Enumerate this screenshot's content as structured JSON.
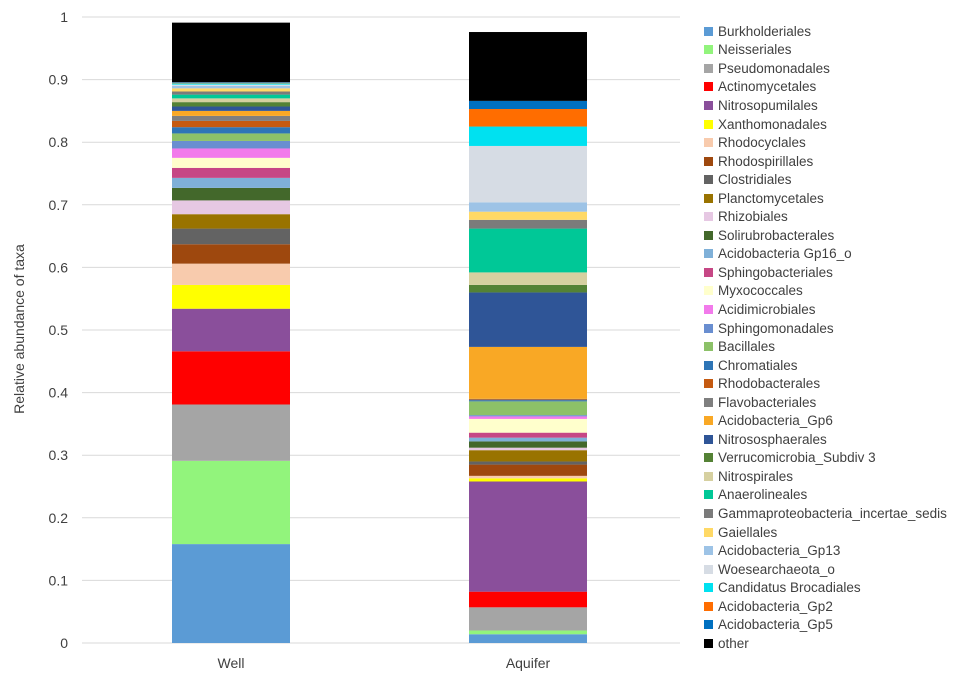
{
  "chart_data": {
    "type": "bar",
    "stacked": true,
    "ylabel": "Relative abundance of taxa",
    "xlabel": "",
    "ylim": [
      0,
      1
    ],
    "yticks": [
      0,
      0.1,
      0.2,
      0.3,
      0.4,
      0.5,
      0.6,
      0.7,
      0.8,
      0.9,
      1
    ],
    "ytick_labels": [
      "0",
      "0.1",
      "0.2",
      "0.3",
      "0.4",
      "0.5",
      "0.6",
      "0.7",
      "0.8",
      "0.9",
      "1"
    ],
    "grid": true,
    "legend_position": "right",
    "categories": [
      "Well",
      "Aquifer"
    ],
    "series": [
      {
        "name": "Burkholderiales",
        "color": "#5B9BD5",
        "values": [
          0.158,
          0.014
        ]
      },
      {
        "name": "Neisseriales",
        "color": "#92F47C",
        "values": [
          0.133,
          0.006
        ]
      },
      {
        "name": "Pseudomonadales",
        "color": "#A5A5A5",
        "values": [
          0.09,
          0.037
        ]
      },
      {
        "name": "Actinomycetales",
        "color": "#FF0000",
        "values": [
          0.085,
          0.025
        ]
      },
      {
        "name": "Nitrosopumilales",
        "color": "#8A4F9B",
        "values": [
          0.068,
          0.176
        ]
      },
      {
        "name": "Xanthomonadales",
        "color": "#FFFF00",
        "values": [
          0.038,
          0.005
        ]
      },
      {
        "name": "Rhodocyclales",
        "color": "#F8CBAD",
        "values": [
          0.034,
          0.004
        ]
      },
      {
        "name": "Rhodospirillales",
        "color": "#9E480E",
        "values": [
          0.031,
          0.018
        ]
      },
      {
        "name": "Clostridiales",
        "color": "#636363",
        "values": [
          0.025,
          0.005
        ]
      },
      {
        "name": "Planctomycetales",
        "color": "#997300",
        "values": [
          0.023,
          0.018
        ]
      },
      {
        "name": "Rhizobiales",
        "color": "#E6C8E3",
        "values": [
          0.022,
          0.004
        ]
      },
      {
        "name": "Solirubrobacterales",
        "color": "#43682B",
        "values": [
          0.02,
          0.01
        ]
      },
      {
        "name": "Acidobacteria Gp16_o",
        "color": "#7FB0D8",
        "values": [
          0.016,
          0.006
        ]
      },
      {
        "name": "Sphingobacteriales",
        "color": "#C64785",
        "values": [
          0.016,
          0.008
        ]
      },
      {
        "name": "Myxococcales",
        "color": "#FFFFCC",
        "values": [
          0.016,
          0.022
        ]
      },
      {
        "name": "Acidimicrobiales",
        "color": "#F27AEB",
        "values": [
          0.015,
          0.004
        ]
      },
      {
        "name": "Sphingomonadales",
        "color": "#698ED0",
        "values": [
          0.012,
          0.002
        ]
      },
      {
        "name": "Bacillales",
        "color": "#8CC168",
        "values": [
          0.012,
          0.022
        ]
      },
      {
        "name": "Chromatiales",
        "color": "#2E75B6",
        "values": [
          0.01,
          0.002
        ]
      },
      {
        "name": "Rhodobacterales",
        "color": "#C55A11",
        "values": [
          0.01,
          0.001
        ]
      },
      {
        "name": "Flavobacteriales",
        "color": "#7F7F7F",
        "values": [
          0.008,
          0.001
        ]
      },
      {
        "name": "Acidobacteria_Gp6",
        "color": "#F9A825",
        "values": [
          0.008,
          0.083
        ]
      },
      {
        "name": "Nitrososphaerales",
        "color": "#2F5597",
        "values": [
          0.007,
          0.087
        ]
      },
      {
        "name": "Verrucomicrobia_Subdiv 3",
        "color": "#548235",
        "values": [
          0.007,
          0.012
        ]
      },
      {
        "name": "Nitrospirales",
        "color": "#D6D0A0",
        "values": [
          0.006,
          0.02
        ]
      },
      {
        "name": "Anaerolineales",
        "color": "#00C897",
        "values": [
          0.006,
          0.07
        ]
      },
      {
        "name": "Gammaproteobacteria_incertae_sedis",
        "color": "#7B7B7B",
        "values": [
          0.005,
          0.014
        ]
      },
      {
        "name": "Gaiellales",
        "color": "#FFD966",
        "values": [
          0.005,
          0.013
        ]
      },
      {
        "name": "Acidobacteria_Gp13",
        "color": "#9DC3E6",
        "values": [
          0.004,
          0.015
        ]
      },
      {
        "name": "Woesearchaeota_o",
        "color": "#D6DCE4",
        "values": [
          0.002,
          0.09
        ]
      },
      {
        "name": "Candidatus Brocadiales",
        "color": "#00E1F0",
        "values": [
          0.002,
          0.031
        ]
      },
      {
        "name": "Acidobacteria_Gp2",
        "color": "#FF6D00",
        "values": [
          0.001,
          0.028
        ]
      },
      {
        "name": "Acidobacteria_Gp5",
        "color": "#0070C0",
        "values": [
          0.001,
          0.013
        ]
      },
      {
        "name": "other",
        "color": "#000000",
        "values": [
          0.095,
          0.11
        ]
      }
    ]
  }
}
